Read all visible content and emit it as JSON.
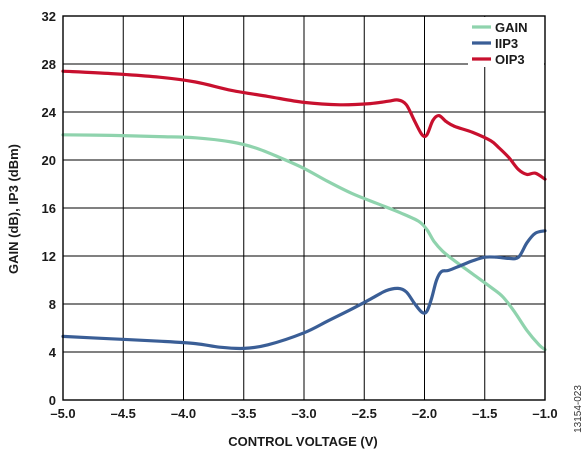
{
  "chart_data": {
    "type": "line",
    "title": "",
    "xlabel": "CONTROL VOLTAGE (V)",
    "ylabel": "GAIN (dB), IP3 (dBm)",
    "xlim": [
      -5.0,
      -1.0
    ],
    "ylim": [
      0,
      32
    ],
    "x_ticks": [
      "–5.0",
      "–4.5",
      "–4.0",
      "–3.5",
      "–3.0",
      "–2.5",
      "–2.0",
      "–1.5",
      "–1.0"
    ],
    "y_ticks": [
      "0",
      "4",
      "8",
      "12",
      "16",
      "20",
      "24",
      "28",
      "32"
    ],
    "grid": true,
    "legend_position": "top-right",
    "series": [
      {
        "name": "GAIN",
        "color": "#8fd3ad",
        "points": [
          [
            -5.0,
            22.1
          ],
          [
            -4.6,
            22.05
          ],
          [
            -4.2,
            21.95
          ],
          [
            -3.9,
            21.85
          ],
          [
            -3.6,
            21.5
          ],
          [
            -3.4,
            21.0
          ],
          [
            -3.2,
            20.2
          ],
          [
            -3.0,
            19.3
          ],
          [
            -2.8,
            18.2
          ],
          [
            -2.6,
            17.2
          ],
          [
            -2.4,
            16.4
          ],
          [
            -2.2,
            15.6
          ],
          [
            -2.05,
            14.9
          ],
          [
            -1.98,
            14.2
          ],
          [
            -1.92,
            13.2
          ],
          [
            -1.85,
            12.4
          ],
          [
            -1.75,
            11.6
          ],
          [
            -1.6,
            10.5
          ],
          [
            -1.45,
            9.4
          ],
          [
            -1.35,
            8.6
          ],
          [
            -1.25,
            7.3
          ],
          [
            -1.15,
            5.8
          ],
          [
            -1.05,
            4.6
          ],
          [
            -1.0,
            4.2
          ]
        ]
      },
      {
        "name": "IIP3",
        "color": "#3a5e96",
        "points": [
          [
            -5.0,
            5.3
          ],
          [
            -4.6,
            5.1
          ],
          [
            -4.2,
            4.9
          ],
          [
            -3.9,
            4.7
          ],
          [
            -3.7,
            4.4
          ],
          [
            -3.5,
            4.3
          ],
          [
            -3.3,
            4.6
          ],
          [
            -3.0,
            5.6
          ],
          [
            -2.8,
            6.6
          ],
          [
            -2.6,
            7.6
          ],
          [
            -2.45,
            8.4
          ],
          [
            -2.32,
            9.1
          ],
          [
            -2.22,
            9.3
          ],
          [
            -2.15,
            9.0
          ],
          [
            -2.08,
            8.0
          ],
          [
            -2.02,
            7.3
          ],
          [
            -1.98,
            7.4
          ],
          [
            -1.94,
            8.5
          ],
          [
            -1.9,
            10.0
          ],
          [
            -1.86,
            10.7
          ],
          [
            -1.8,
            10.8
          ],
          [
            -1.7,
            11.2
          ],
          [
            -1.6,
            11.6
          ],
          [
            -1.5,
            11.9
          ],
          [
            -1.4,
            11.9
          ],
          [
            -1.3,
            11.8
          ],
          [
            -1.22,
            11.9
          ],
          [
            -1.15,
            13.1
          ],
          [
            -1.08,
            13.9
          ],
          [
            -1.0,
            14.1
          ]
        ]
      },
      {
        "name": "OIP3",
        "color": "#c8102e",
        "points": [
          [
            -5.0,
            27.4
          ],
          [
            -4.6,
            27.2
          ],
          [
            -4.2,
            26.9
          ],
          [
            -3.9,
            26.5
          ],
          [
            -3.6,
            25.8
          ],
          [
            -3.3,
            25.3
          ],
          [
            -3.0,
            24.8
          ],
          [
            -2.7,
            24.6
          ],
          [
            -2.45,
            24.7
          ],
          [
            -2.3,
            24.9
          ],
          [
            -2.22,
            25.0
          ],
          [
            -2.15,
            24.6
          ],
          [
            -2.08,
            23.2
          ],
          [
            -2.02,
            22.1
          ],
          [
            -1.98,
            22.1
          ],
          [
            -1.93,
            23.3
          ],
          [
            -1.88,
            23.7
          ],
          [
            -1.82,
            23.2
          ],
          [
            -1.75,
            22.8
          ],
          [
            -1.6,
            22.3
          ],
          [
            -1.45,
            21.6
          ],
          [
            -1.38,
            21.0
          ],
          [
            -1.3,
            20.2
          ],
          [
            -1.22,
            19.2
          ],
          [
            -1.15,
            18.8
          ],
          [
            -1.08,
            18.9
          ],
          [
            -1.0,
            18.4
          ]
        ]
      }
    ]
  },
  "figure_id": "13154-023"
}
